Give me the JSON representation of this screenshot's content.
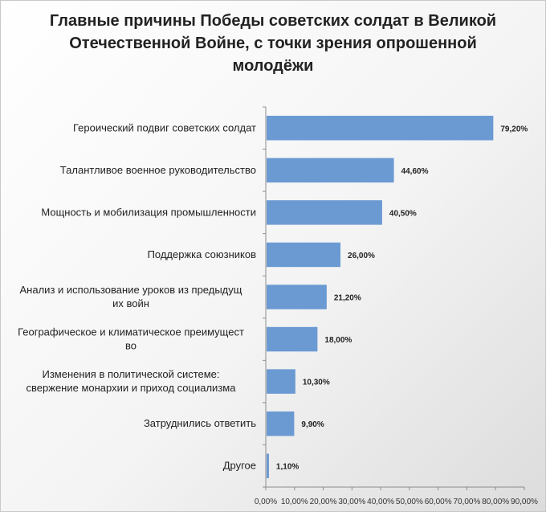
{
  "chart_data": {
    "type": "bar",
    "orientation": "horizontal",
    "title": "Главные причины Победы советских солдат в Великой Отечественной Войне, с точки зрения опрошенной молодёжи",
    "categories": [
      [
        "Героический подвиг советских солдат"
      ],
      [
        "Талантливое военное руководительство"
      ],
      [
        "Мощность и мобилизация промышленности"
      ],
      [
        "Поддержка союзников"
      ],
      [
        "Анализ и использование уроков из предыдущ",
        "их войн"
      ],
      [
        "Географическое и климатическое преимущест",
        "во"
      ],
      [
        "Изменения в политической системе:",
        "свержение монархии и приход социализма"
      ],
      [
        "Затруднились ответить"
      ],
      [
        "Другое"
      ]
    ],
    "values": [
      79.2,
      44.6,
      40.5,
      26.0,
      21.2,
      18.0,
      10.3,
      9.9,
      1.1
    ],
    "value_labels": [
      "79,20%",
      "44,60%",
      "40,50%",
      "26,00%",
      "21,20%",
      "18,00%",
      "10,30%",
      "9,90%",
      "1,10%"
    ],
    "xlim": [
      0,
      90
    ],
    "x_ticks": [
      "0,00%",
      "10,00%",
      "20,00%",
      "30,00%",
      "40,00%",
      "50,00%",
      "60,00%",
      "70,00%",
      "80,00%",
      "90,00%"
    ],
    "grid": false,
    "legend": "none",
    "bar_color": "#6b9ad3"
  }
}
